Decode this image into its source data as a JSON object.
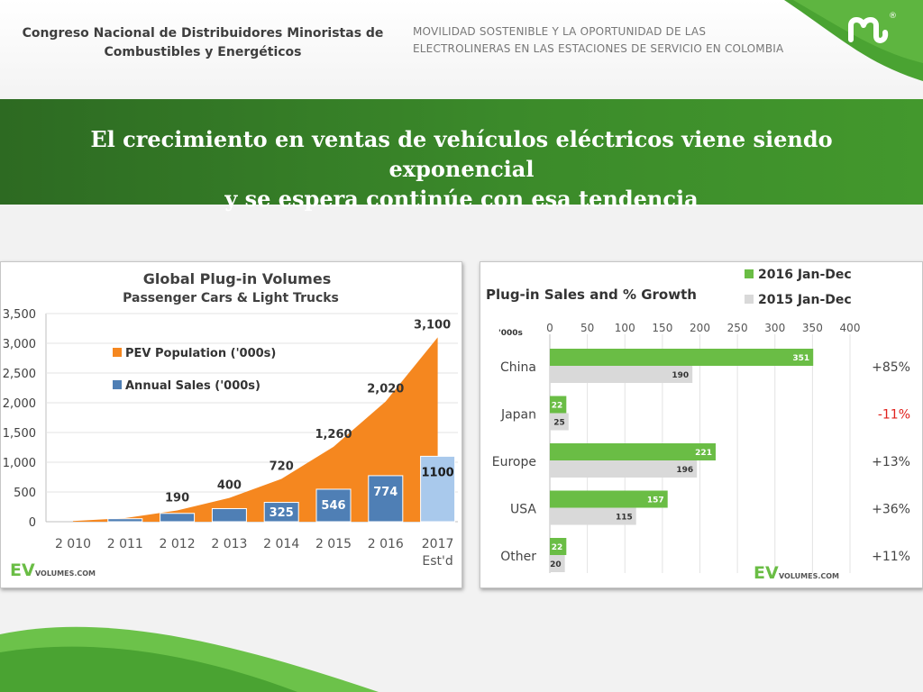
{
  "header": {
    "org_line1": "Congreso Nacional de Distribuidores Minoristas de",
    "org_line2": "Combustibles y Energéticos",
    "topic_line1": "MOVILIDAD SOSTENIBLE Y LA OPORTUNIDAD DE LAS",
    "topic_line2": "ELECTROLINERAS EN LAS ESTACIONES DE SERVICIO EN COLOMBIA",
    "logo_mark": "®"
  },
  "banner": {
    "line1": "El crecimiento en ventas de vehículos eléctricos viene siendo exponencial",
    "line2": "y se espera continúe con esa tendencia"
  },
  "colors": {
    "orange": "#f5871f",
    "blue": "#4f7fb5",
    "light_blue": "#a9c9ec",
    "green_bar": "#6abd45",
    "gray_bar": "#d9d9d9",
    "banner_green": "#3b8a2a",
    "negative_red": "#e0211c"
  },
  "chart_data": [
    {
      "type": "area",
      "title": "Global Plug-in Volumes",
      "subtitle": "Passenger Cars & Light Trucks",
      "categories": [
        "2 010",
        "2 011",
        "2 012",
        "2 013",
        "2 014",
        "2 015",
        "2 016",
        "2017"
      ],
      "category_sub": [
        "",
        "",
        "",
        "",
        "",
        "",
        "",
        "Est'd"
      ],
      "ylim": [
        0,
        3500
      ],
      "yticks": [
        "0",
        "500",
        "1,000",
        "1,500",
        "2,000",
        "2,500",
        "3,000",
        "3,500"
      ],
      "ytick_values": [
        0,
        500,
        1000,
        1500,
        2000,
        2500,
        3000,
        3500
      ],
      "series": [
        {
          "name": "PEV Population ('000s)",
          "kind": "area",
          "values": [
            12,
            60,
            190,
            400,
            720,
            1260,
            2020,
            3100
          ],
          "labels": [
            "",
            "",
            "190",
            "400",
            "720",
            "1,260",
            "2,020",
            "3,100"
          ]
        },
        {
          "name": "Annual Sales ('000s)",
          "kind": "bar",
          "values": [
            0,
            50,
            140,
            220,
            325,
            546,
            774,
            1100
          ],
          "labels": [
            "",
            "",
            "",
            "",
            "325",
            "546",
            "774",
            "1100"
          ]
        }
      ],
      "source": {
        "big": "EV",
        "small": "VOLUMES.COM"
      }
    },
    {
      "type": "bar",
      "orientation": "horizontal",
      "title": "Plug-in Sales and % Growth",
      "unit_label": "'000s",
      "xlim": [
        0,
        400
      ],
      "xticks": [
        "0",
        "50",
        "100",
        "150",
        "200",
        "250",
        "300",
        "350",
        "400"
      ],
      "xtick_values": [
        0,
        50,
        100,
        150,
        200,
        250,
        300,
        350,
        400
      ],
      "categories": [
        "China",
        "Japan",
        "Europe",
        "USA",
        "Other"
      ],
      "series": [
        {
          "name": "2016 Jan-Dec",
          "values": [
            351,
            22,
            221,
            157,
            22
          ]
        },
        {
          "name": "2015 Jan-Dec",
          "values": [
            190,
            25,
            196,
            115,
            20
          ]
        }
      ],
      "growth": [
        "+85%",
        "-11%",
        "+13%",
        "+36%",
        "+11%"
      ],
      "source": {
        "big": "EV",
        "small": "VOLUMES.COM"
      }
    }
  ]
}
